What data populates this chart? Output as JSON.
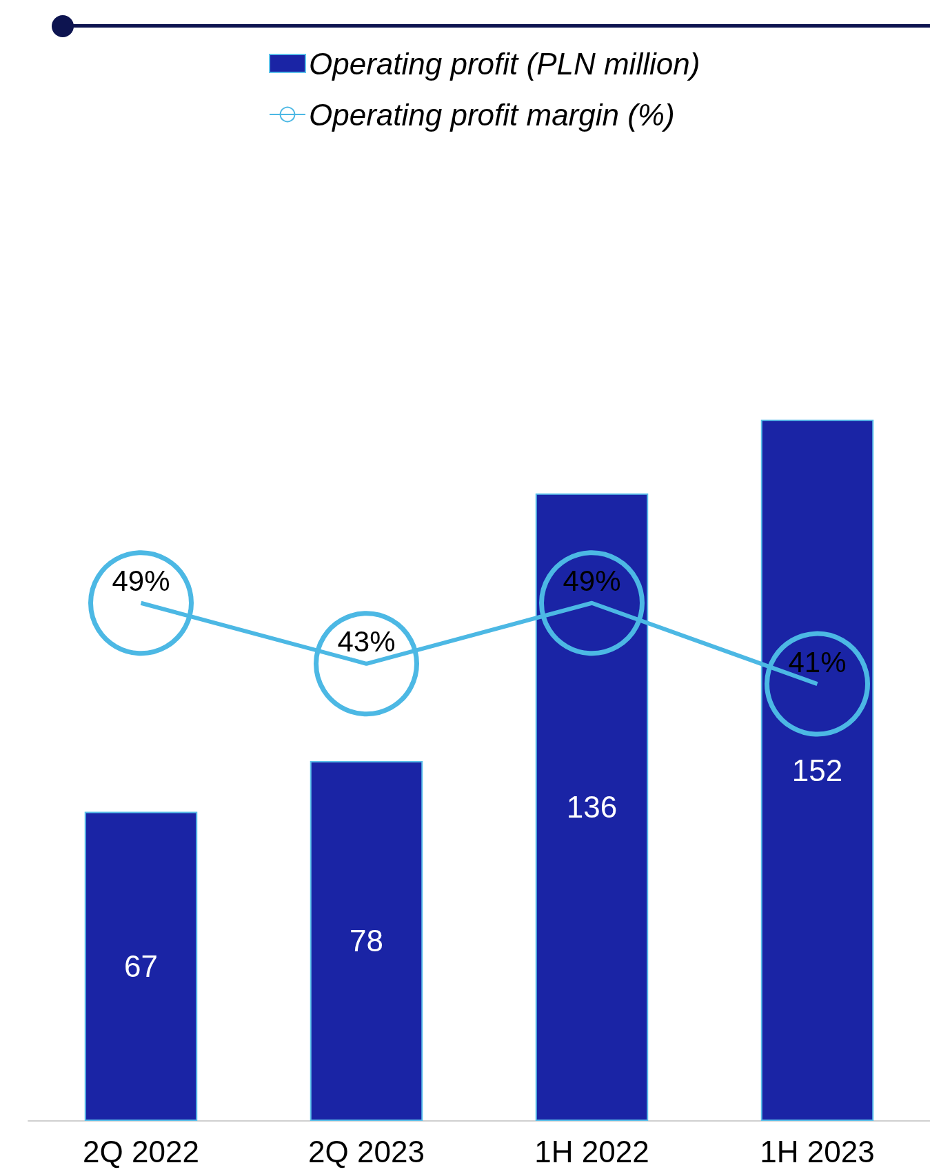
{
  "chart_data": {
    "type": "bar",
    "categories": [
      "2Q 2022",
      "2Q 2023",
      "1H 2022",
      "1H 2023"
    ],
    "series": [
      {
        "name": "Operating profit (PLN million)",
        "color": "#1a24a5",
        "values": [
          67,
          78,
          136,
          152
        ]
      },
      {
        "name": "Operating profit margin (%)",
        "type": "line",
        "axis": "y2",
        "color": "#4cb8e4",
        "values": [
          49,
          43,
          49,
          41
        ],
        "value_labels": [
          "49%",
          "43%",
          "49%",
          "41%"
        ]
      }
    ],
    "data_labels": true,
    "legend": "top"
  }
}
